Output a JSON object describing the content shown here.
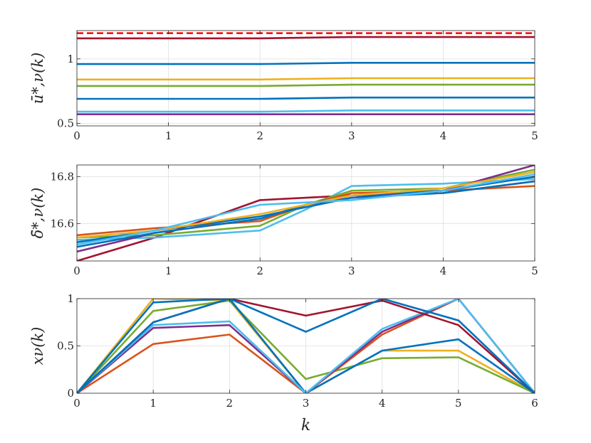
{
  "colors": [
    "#0072BD",
    "#D95319",
    "#EDB120",
    "#7E2F8E",
    "#77AC30",
    "#4DBEEE",
    "#A2142F"
  ],
  "chart_data": [
    {
      "type": "line",
      "ylabel": "ū*,ν(k)",
      "xlabel": "",
      "xlim": [
        0,
        5
      ],
      "ylim": [
        0.48,
        1.22
      ],
      "xticks": [
        0,
        1,
        2,
        3,
        4,
        5
      ],
      "xticklabels": [
        "0",
        "1",
        "2",
        "3",
        "4",
        "5"
      ],
      "yticks": [
        0.5,
        1
      ],
      "yticklabels": [
        "0.5",
        "1"
      ],
      "grid": true,
      "x": [
        0,
        1,
        2,
        3,
        4,
        5
      ],
      "reference": {
        "value": 1.2,
        "style": "dashed",
        "color": "#FF0000"
      },
      "series": [
        {
          "color": "#A2142F",
          "values": [
            1.16,
            1.16,
            1.16,
            1.17,
            1.17,
            1.17
          ]
        },
        {
          "color": "#0072BD",
          "values": [
            0.96,
            0.96,
            0.96,
            0.97,
            0.97,
            0.97
          ]
        },
        {
          "color": "#EDB120",
          "values": [
            0.84,
            0.84,
            0.84,
            0.85,
            0.85,
            0.85
          ]
        },
        {
          "color": "#77AC30",
          "values": [
            0.79,
            0.79,
            0.79,
            0.8,
            0.8,
            0.8
          ]
        },
        {
          "color": "#0072BD",
          "values": [
            0.69,
            0.69,
            0.69,
            0.7,
            0.7,
            0.7
          ]
        },
        {
          "color": "#4DBEEE",
          "values": [
            0.59,
            0.59,
            0.59,
            0.6,
            0.6,
            0.6
          ]
        },
        {
          "color": "#7E2F8E",
          "values": [
            0.57,
            0.57,
            0.57,
            0.57,
            0.57,
            0.57
          ]
        }
      ]
    },
    {
      "type": "line",
      "ylabel": "δ̄*,ν(k)",
      "xlabel": "",
      "xlim": [
        0,
        5
      ],
      "ylim": [
        16.44,
        16.85
      ],
      "xticks": [
        0,
        1,
        2,
        3,
        4,
        5
      ],
      "xticklabels": [
        "0",
        "1",
        "2",
        "3",
        "4",
        "5"
      ],
      "yticks": [
        16.6,
        16.8
      ],
      "yticklabels": [
        "16.6",
        "16.8"
      ],
      "grid": true,
      "x": [
        0,
        0.85,
        2,
        2.5,
        3,
        4,
        5
      ],
      "series": [
        {
          "color": "#A2142F",
          "values": [
            16.44,
            16.54,
            16.7,
            16.71,
            16.72,
            16.73,
            16.78
          ]
        },
        {
          "color": "#4DBEEE",
          "values": [
            16.53,
            16.54,
            16.57,
            16.66,
            16.76,
            16.77,
            16.79
          ]
        },
        {
          "color": "#77AC30",
          "values": [
            16.54,
            16.55,
            16.59,
            16.68,
            16.74,
            16.75,
            16.83
          ]
        },
        {
          "color": "#7E2F8E",
          "values": [
            16.48,
            16.56,
            16.62,
            16.68,
            16.71,
            16.74,
            16.85
          ]
        },
        {
          "color": "#D95319",
          "values": [
            16.55,
            16.58,
            16.61,
            16.68,
            16.73,
            16.74,
            16.76
          ]
        },
        {
          "color": "#0072BD",
          "values": [
            16.52,
            16.57,
            16.63,
            16.67,
            16.71,
            16.73,
            16.78
          ]
        },
        {
          "color": "#0072BD",
          "values": [
            16.5,
            16.56,
            16.62,
            16.68,
            16.72,
            16.74,
            16.8
          ]
        },
        {
          "color": "#EDB120",
          "values": [
            16.54,
            16.57,
            16.64,
            16.68,
            16.72,
            16.75,
            16.82
          ]
        },
        {
          "color": "#4DBEEE",
          "values": [
            16.51,
            16.57,
            16.68,
            16.69,
            16.7,
            16.74,
            16.81
          ]
        }
      ]
    },
    {
      "type": "line",
      "ylabel": "xν(k)",
      "xlabel": "k",
      "xlim": [
        0,
        6
      ],
      "ylim": [
        0,
        1
      ],
      "xticks": [
        0,
        1,
        2,
        3,
        4,
        5,
        6
      ],
      "xticklabels": [
        "0",
        "1",
        "2",
        "3",
        "4",
        "5",
        "6"
      ],
      "yticks": [
        0,
        0.5,
        1
      ],
      "yticklabels": [
        "0",
        "0.5",
        "1"
      ],
      "grid": true,
      "x": [
        0,
        1,
        2,
        3,
        4,
        5,
        6
      ],
      "series": [
        {
          "color": "#EDB120",
          "values": [
            0,
            1.0,
            0.98,
            0,
            0.45,
            0.45,
            0
          ]
        },
        {
          "color": "#77AC30",
          "values": [
            0,
            0.87,
            0.98,
            0.15,
            0.37,
            0.38,
            0
          ]
        },
        {
          "color": "#0072BD",
          "values": [
            0,
            0.96,
            1.0,
            0,
            0.45,
            0.57,
            0
          ]
        },
        {
          "color": "#D95319",
          "values": [
            0,
            0.52,
            0.62,
            0,
            0.62,
            1.0,
            0
          ]
        },
        {
          "color": "#7E2F8E",
          "values": [
            0,
            0.69,
            0.72,
            0,
            0.65,
            1.0,
            0
          ]
        },
        {
          "color": "#4DBEEE",
          "values": [
            0,
            0.72,
            0.76,
            0,
            0.68,
            1.0,
            0
          ]
        },
        {
          "color": "#A2142F",
          "values": [
            0,
            0.75,
            1.0,
            0.82,
            0.98,
            0.72,
            0
          ]
        },
        {
          "color": "#0072BD",
          "values": [
            0,
            0.75,
            1.0,
            0.65,
            1.0,
            0.77,
            0
          ]
        }
      ]
    }
  ]
}
